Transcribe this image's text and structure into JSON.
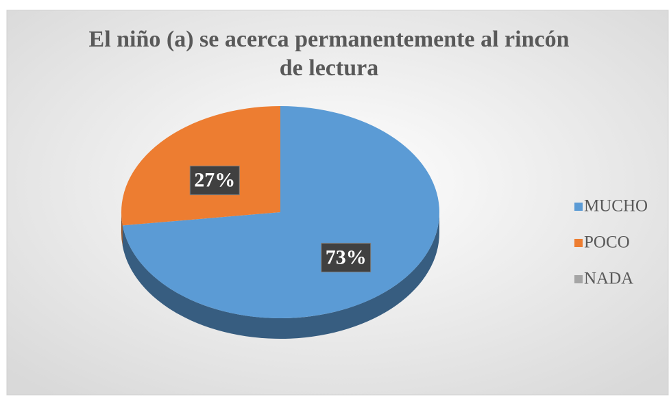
{
  "chart_data": {
    "type": "pie",
    "title": "El niño (a) se acerca permanentemente al rincón de lectura",
    "categories": [
      "MUCHO",
      "POCO",
      "NADA"
    ],
    "values": [
      73,
      27,
      0
    ],
    "value_labels": [
      "73%",
      "27%",
      null
    ],
    "colors": [
      "#5b9bd5",
      "#ed7d31",
      "#a5a5a5"
    ],
    "legend": "right"
  }
}
